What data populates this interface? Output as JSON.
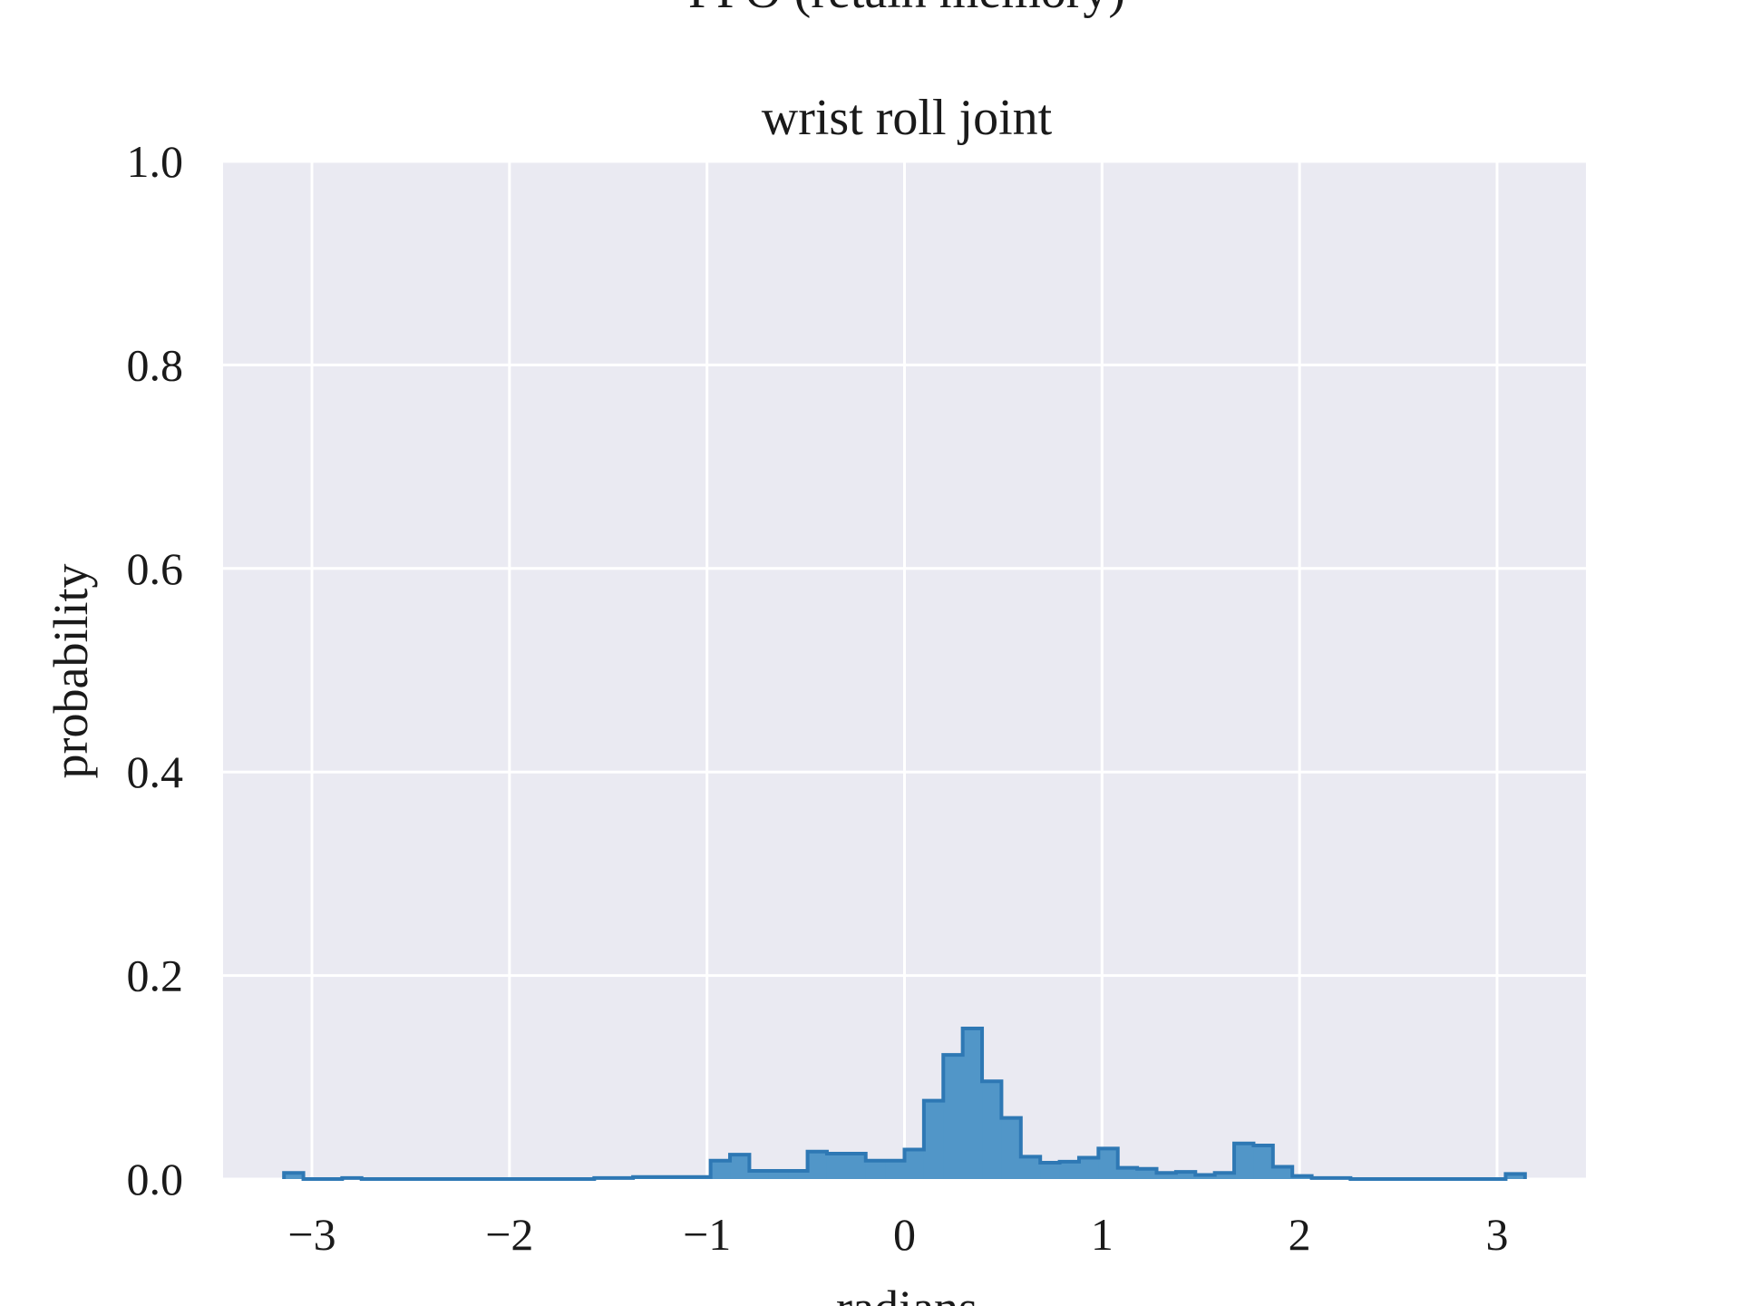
{
  "chart_data": {
    "type": "histogram",
    "suptitle": "PPO (retain memory)",
    "title": "wrist roll joint",
    "xlabel": "radians",
    "ylabel": "probability",
    "xlim": [
      -3.45,
      3.45
    ],
    "ylim": [
      0.0,
      1.0
    ],
    "xticks": [
      -3,
      -2,
      -1,
      0,
      1,
      2,
      3
    ],
    "xtick_labels": [
      "−3",
      "−2",
      "−1",
      "0",
      "1",
      "2",
      "3"
    ],
    "yticks": [
      0.0,
      0.2,
      0.4,
      0.6,
      0.8,
      1.0
    ],
    "ytick_labels": [
      "0.0",
      "0.2",
      "0.4",
      "0.6",
      "0.8",
      "1.0"
    ],
    "grid": true,
    "background_color": "#eaeaf2",
    "bar_color": "#5196c8",
    "edge_color": "#2e78b4",
    "bin_range": [
      -3.1416,
      3.1416
    ],
    "values": [
      0.006,
      0,
      0,
      0.001,
      0,
      0,
      0,
      0,
      0,
      0,
      0,
      0,
      0,
      0,
      0,
      0,
      0.001,
      0.001,
      0.002,
      0.002,
      0.002,
      0.002,
      0.018,
      0.024,
      0.008,
      0.008,
      0.008,
      0.027,
      0.025,
      0.025,
      0.018,
      0.018,
      0.029,
      0.077,
      0.122,
      0.148,
      0.096,
      0.06,
      0.022,
      0.016,
      0.017,
      0.021,
      0.03,
      0.011,
      0.01,
      0.006,
      0.007,
      0.004,
      0.006,
      0.035,
      0.033,
      0.012,
      0.003,
      0.001,
      0.001,
      0,
      0,
      0,
      0,
      0,
      0,
      0,
      0,
      0.005
    ]
  }
}
